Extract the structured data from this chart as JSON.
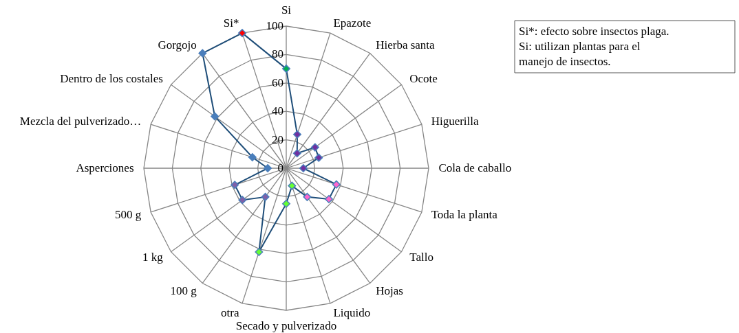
{
  "chart_data": {
    "type": "radar",
    "categories": [
      "Si",
      "Epazote",
      "Hierba santa",
      "Ocote",
      "Higuerilla",
      "Cola de caballo",
      "Toda la planta",
      "Tallo",
      "Hojas",
      "Liquido",
      "Secado y pulverizado",
      "otra",
      "100 g",
      "1 kg",
      "500 g",
      "Asperciones",
      "Mezcla del pulverizado…",
      "Dentro de los costales",
      "Gorgojo",
      "Si*"
    ],
    "series": [
      {
        "color": "#1f4e79",
        "values": [
          70,
          25,
          13,
          25,
          24,
          12,
          37,
          37,
          25,
          13,
          25,
          62,
          25,
          38,
          38,
          13,
          25,
          62,
          100,
          100
        ],
        "colors": [
          "#00b050",
          "#7030a0",
          "#7030a0",
          "#7030a0",
          "#7030a0",
          "#7030a0",
          "#ff66cc",
          "#ff66cc",
          "#ff66cc",
          "#66ff33",
          "#66ff33",
          "#66ff33",
          "#7f60a8",
          "#7f60a8",
          "#7f60a8",
          "#4a7ebb",
          "#4a7ebb",
          "#4a7ebb",
          "#4a7ebb",
          "#ff0000"
        ]
      }
    ],
    "ylim": [
      0,
      100
    ],
    "yticks": [
      0,
      20,
      40,
      60,
      80,
      100
    ],
    "grid": true,
    "marker": "diamond",
    "annotations": [
      "Si*: efecto sobre insectos plaga.",
      "Si: utilizan plantas para el manejo de insectos."
    ]
  }
}
